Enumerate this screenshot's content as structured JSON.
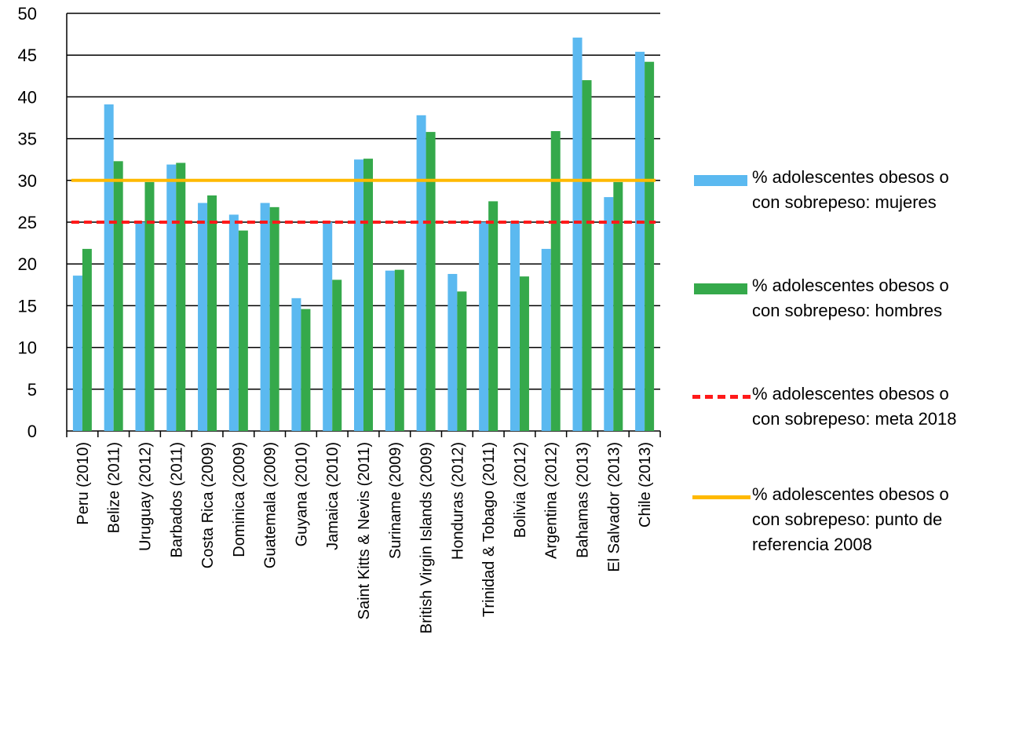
{
  "chart_data": {
    "type": "bar",
    "title": "",
    "xlabel": "",
    "ylabel": "",
    "ylim": [
      0,
      50
    ],
    "yticks": [
      0,
      5,
      10,
      15,
      20,
      25,
      30,
      35,
      40,
      45,
      50
    ],
    "categories": [
      "Peru (2010)",
      "Belize (2011)",
      "Uruguay (2012)",
      "Barbados (2011)",
      "Costa Rica (2009)",
      "Dominica (2009)",
      "Guatemala (2009)",
      "Guyana (2010)",
      "Jamaica (2010)",
      "Saint Kitts & Nevis (2011)",
      "Suriname (2009)",
      "British Virgin Islands (2009)",
      "Honduras (2012)",
      "Trinidad & Tobago (2011)",
      "Bolivia (2012)",
      "Argentina (2012)",
      "Bahamas (2013)",
      "El Salvador (2013)",
      "Chile (2013)"
    ],
    "series": [
      {
        "name": "% adolescentes obesos o con sobrepeso: mujeres",
        "kind": "bar",
        "color": "#5bb9f0",
        "values": [
          18.6,
          39.1,
          25.0,
          31.9,
          27.3,
          25.9,
          27.3,
          15.9,
          25.0,
          32.5,
          19.2,
          37.8,
          18.8,
          25.0,
          25.0,
          21.8,
          47.1,
          28.0,
          45.4
        ]
      },
      {
        "name": "% adolescentes obesos o con sobrepeso: hombres",
        "kind": "bar",
        "color": "#35a94b",
        "values": [
          21.8,
          32.3,
          29.8,
          32.1,
          28.2,
          24.0,
          26.8,
          14.6,
          18.1,
          32.6,
          19.3,
          35.8,
          16.7,
          27.5,
          18.5,
          35.9,
          42.0,
          29.8,
          44.2
        ]
      },
      {
        "name": "% adolescentes obesos o con sobrepeso: meta 2018",
        "kind": "dashed-line",
        "color": "#ff1a1a",
        "value": 25
      },
      {
        "name": "% adolescentes obesos o con sobrepeso: punto de referencia 2008",
        "kind": "line",
        "color": "#ffb900",
        "value": 30
      }
    ],
    "grid": true,
    "legend_position": "right"
  },
  "legend": [
    {
      "line1": "% adolescentes obesos o",
      "line2": "con sobrepeso: mujeres",
      "line3": ""
    },
    {
      "line1": "% adolescentes obesos o",
      "line2": "con sobrepeso: hombres",
      "line3": ""
    },
    {
      "line1": "% adolescentes obesos o",
      "line2": "con sobrepeso: meta 2018",
      "line3": ""
    },
    {
      "line1": "% adolescentes obesos o",
      "line2": "con sobrepeso: punto de",
      "line3": "referencia 2008"
    }
  ]
}
